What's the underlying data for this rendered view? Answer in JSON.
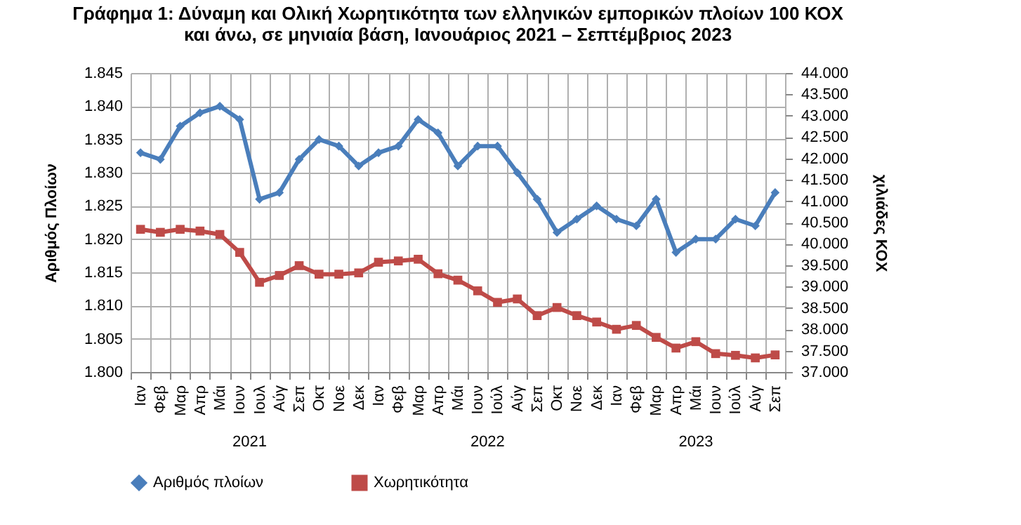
{
  "chart_data": {
    "type": "line",
    "title": "Γράφημα 1: Δύναμη και Ολική Χωρητικότητα των ελληνικών εμπορικών πλοίων 100 ΚΟΧ και άνω, σε μηνιαία βάση, Ιανουάριος 2021 – Σεπτέμβριος 2023",
    "categories": [
      "Ιαν",
      "Φεβ",
      "Μαρ",
      "Απρ",
      "Μάι",
      "Ιουν",
      "Ιουλ",
      "Αύγ",
      "Σεπ",
      "Οκτ",
      "Νοε",
      "Δεκ",
      "Ιαν",
      "Φεβ",
      "Μαρ",
      "Απρ",
      "Μάι",
      "Ιουν",
      "Ιούλ",
      "Αύγ",
      "Σεπ",
      "Οκτ",
      "Νοε",
      "Δεκ",
      "Ιαν",
      "Φεβ",
      "Μαρ",
      "Απρ",
      "Μάι",
      "Ιουν",
      "Ιούλ",
      "Αύγ",
      "Σεπ"
    ],
    "series": [
      {
        "name": "Αριθμός πλοίων",
        "color": "#4a7ebb",
        "marker": "diamond",
        "values": [
          1833,
          1832,
          1837,
          1839,
          1840,
          1838,
          1826,
          1827,
          1832,
          1835,
          1834,
          1831,
          1833,
          1834,
          1838,
          1836,
          1831,
          1834,
          1834,
          1830,
          1826,
          1821,
          1823,
          1825,
          1823,
          1822,
          1826,
          1818,
          1820,
          1820,
          1823,
          1822,
          1827
        ]
      },
      {
        "name": "Χωρητικότητα",
        "color": "#be4b48",
        "marker": "square",
        "axis": "y2",
        "values": [
          40340,
          40270,
          40340,
          40300,
          40220,
          39800,
          39100,
          39260,
          39490,
          39290,
          39290,
          39320,
          39570,
          39600,
          39640,
          39300,
          39150,
          38900,
          38630,
          38710,
          38320,
          38510,
          38320,
          38170,
          38000,
          38090,
          37810,
          37560,
          37710,
          37430,
          37390,
          37330,
          37400
        ]
      }
    ],
    "ylabel": "Αριθμός Πλοίων",
    "y2label": "χιλιάδες ΚΟΧ",
    "ylim": [
      1800,
      1845
    ],
    "yticks": [
      {
        "value": 1800,
        "label": "1.800"
      },
      {
        "value": 1805,
        "label": "1.805"
      },
      {
        "value": 1810,
        "label": "1.810"
      },
      {
        "value": 1815,
        "label": "1.815"
      },
      {
        "value": 1820,
        "label": "1.820"
      },
      {
        "value": 1825,
        "label": "1.825"
      },
      {
        "value": 1830,
        "label": "1.830"
      },
      {
        "value": 1835,
        "label": "1.835"
      },
      {
        "value": 1840,
        "label": "1.840"
      },
      {
        "value": 1845,
        "label": "1.845"
      }
    ],
    "y2lim": [
      37000,
      44000
    ],
    "y2ticks": [
      {
        "value": 37000,
        "label": "37.000"
      },
      {
        "value": 37500,
        "label": "37.500"
      },
      {
        "value": 38000,
        "label": "38.000"
      },
      {
        "value": 38500,
        "label": "38.500"
      },
      {
        "value": 39000,
        "label": "39.000"
      },
      {
        "value": 39500,
        "label": "39.500"
      },
      {
        "value": 40000,
        "label": "40.000"
      },
      {
        "value": 40500,
        "label": "40.500"
      },
      {
        "value": 41000,
        "label": "41.000"
      },
      {
        "value": 41500,
        "label": "41.500"
      },
      {
        "value": 42000,
        "label": "42.000"
      },
      {
        "value": 42500,
        "label": "42.500"
      },
      {
        "value": 43000,
        "label": "43.000"
      },
      {
        "value": 43500,
        "label": "43.500"
      },
      {
        "value": 44000,
        "label": "44.000"
      }
    ],
    "annotations": [
      "2021",
      "2022",
      "2023"
    ],
    "grid": true,
    "legend": "bottom",
    "line_style": "solid"
  }
}
